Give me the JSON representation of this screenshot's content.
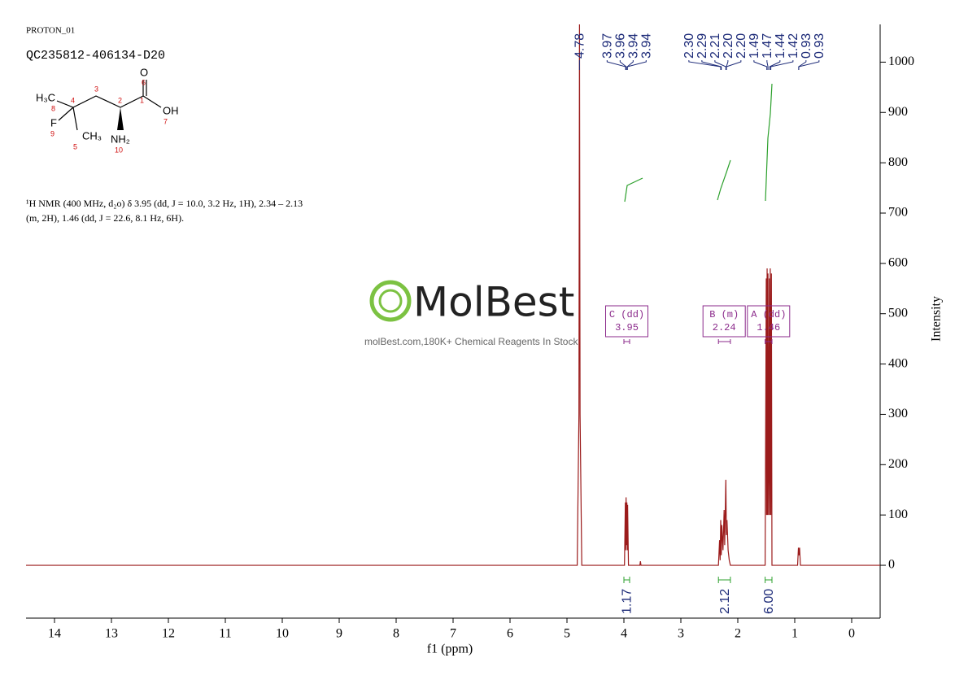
{
  "header": {
    "experiment": "PROTON_01",
    "sample": "QC235812-406134-D20",
    "structure": {
      "atoms": [
        "H₃C",
        "8",
        "4",
        "3",
        "2",
        "1",
        "O",
        "6",
        "OH",
        "7",
        "F",
        "9",
        "CH₃",
        "5",
        "NH₂",
        "10"
      ]
    },
    "description": [
      "¹H NMR (400 MHz, d₂o) δ 3.95 (dd, J = 10.0, 3.2 Hz, 1H), 2.34 – 2.13",
      "(m, 2H), 1.46 (dd, J = 22.6, 8.1 Hz, 6H)."
    ],
    "watermark": {
      "brand": "MolBest",
      "tagline": "molBest.com,180K+ Chemical Reagents In Stock."
    }
  },
  "chart_data": {
    "type": "nmr",
    "x_label": "f1 (ppm)",
    "y_label": "Intensity",
    "color": "#9b1b1b",
    "xlim": [
      14.5,
      -0.5
    ],
    "xticks": [
      14,
      13,
      12,
      11,
      10,
      9,
      8,
      7,
      6,
      5,
      4,
      3,
      2,
      1,
      0
    ],
    "ylim": [
      -105,
      1075
    ],
    "yticks": [
      0,
      100,
      200,
      300,
      400,
      500,
      600,
      700,
      800,
      900,
      1000
    ],
    "x": [
      14.5,
      4.82,
      4.79,
      4.78,
      4.77,
      4.74,
      3.99,
      3.975,
      3.968,
      3.962,
      3.955,
      3.948,
      3.94,
      3.935,
      3.92,
      3.72,
      3.71,
      3.7,
      2.34,
      2.32,
      2.31,
      2.3,
      2.29,
      2.28,
      2.26,
      2.24,
      2.23,
      2.21,
      2.2,
      2.19,
      2.17,
      2.15,
      2.13,
      1.52,
      1.5,
      1.495,
      1.485,
      1.48,
      1.47,
      1.46,
      1.445,
      1.44,
      1.43,
      1.42,
      1.41,
      1.4,
      0.95,
      0.935,
      0.925,
      0.915,
      0.9,
      -0.5
    ],
    "values": [
      0,
      0,
      300,
      1076,
      300,
      0,
      0,
      125,
      30,
      135,
      40,
      125,
      30,
      120,
      0,
      0,
      8,
      0,
      0,
      50,
      10,
      90,
      20,
      80,
      30,
      110,
      40,
      170,
      60,
      90,
      30,
      10,
      0,
      0,
      570,
      100,
      590,
      100,
      580,
      100,
      570,
      100,
      590,
      100,
      580,
      0,
      0,
      35,
      20,
      35,
      0,
      0
    ],
    "peak_labels": [
      4.78,
      3.97,
      3.96,
      3.94,
      3.94,
      {
        "value": 2.3,
        "label": "2.30"
      },
      2.29,
      2.21,
      {
        "value": 2.2,
        "label": "2.20"
      },
      {
        "value": 2.2,
        "label": "2.20"
      },
      1.49,
      1.47,
      1.44,
      1.42,
      0.93,
      0.93
    ],
    "multiplets": [
      {
        "label": "C (dd)",
        "shift": 3.95,
        "range": [
          4.0,
          3.9
        ]
      },
      {
        "label": "B (m)",
        "shift": 2.24,
        "range": [
          2.34,
          2.13
        ]
      },
      {
        "label": "A (dd)",
        "shift": 1.46,
        "range": [
          1.52,
          1.4
        ]
      }
    ],
    "integrals": {
      "ranges": [
        [
          4.0,
          3.9
        ],
        [
          2.34,
          2.13
        ],
        [
          1.52,
          1.4
        ]
      ],
      "values": [
        1.17,
        2.12,
        6
      ],
      "value_labels": [
        "1.17",
        "2.12",
        "6.00"
      ]
    }
  }
}
